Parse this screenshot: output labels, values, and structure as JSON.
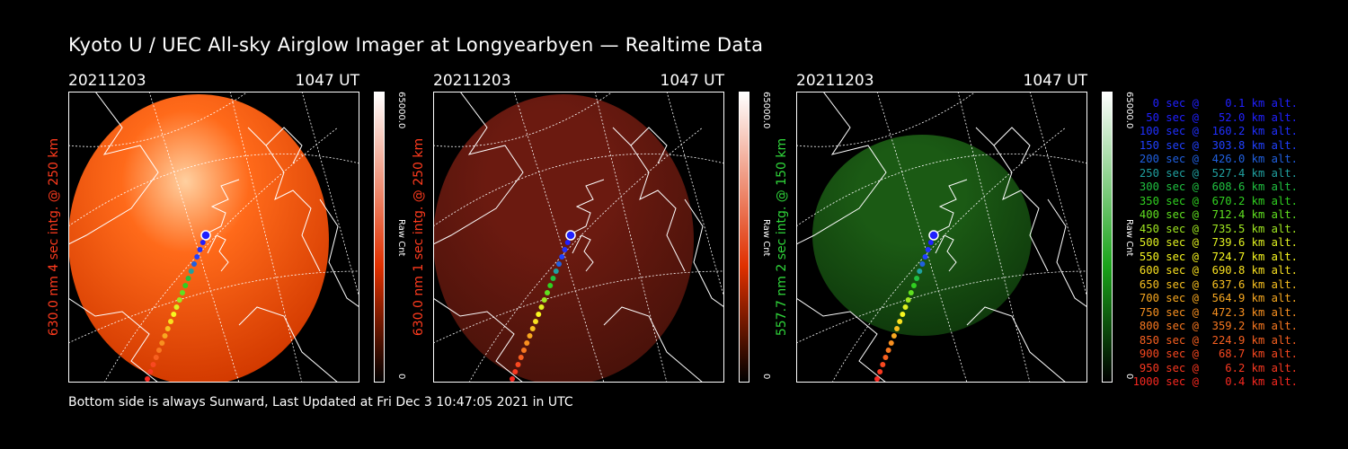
{
  "title": "Kyoto U / UEC All-sky Airglow Imager at Longyearbyen — Realtime Data",
  "footer": "Bottom side is always Sunward, Last Updated at Fri Dec  3 10:47:05 2021 in UTC",
  "panels": [
    {
      "date": "20211203",
      "time": "1047 UT",
      "label": "630.0 nm 4 sec intg. @ 250 km",
      "label_color": "#ff3b1e",
      "cbar_max": "65000.0",
      "cbar_unit": "Raw Cnt",
      "cbar_min": "0",
      "color_top": "#ffffff",
      "color_bottom": "#e03000",
      "glow_inner": "#ff6a1a",
      "glow_outer": "#d33a00",
      "brightness": "bright"
    },
    {
      "date": "20211203",
      "time": "1047 UT",
      "label": "630.0 nm 1 sec intg. @ 250 km",
      "label_color": "#ff3b1e",
      "cbar_max": "65000.0",
      "cbar_unit": "Raw Cnt",
      "cbar_min": "0",
      "color_top": "#ffffff",
      "color_bottom": "#e03000",
      "glow_inner": "#6b1a10",
      "glow_outer": "#4a120a",
      "brightness": "dim"
    },
    {
      "date": "20211203",
      "time": "1047 UT",
      "label": "557.7 nm 2 sec intg. @ 150 km",
      "label_color": "#2fd63a",
      "cbar_max": "65000.0",
      "cbar_unit": "Raw Cnt",
      "cbar_min": "0",
      "color_top": "#ffffff",
      "color_bottom": "#1aa31a",
      "glow_inner": "#1b5a14",
      "glow_outer": "#0f3a0c",
      "brightness": "dim"
    }
  ],
  "legend": [
    {
      "text": "   0 sec @    0.1 km alt.",
      "color": "#2020ff"
    },
    {
      "text": "  50 sec @   52.0 km alt.",
      "color": "#2020ff"
    },
    {
      "text": " 100 sec @  160.2 km alt.",
      "color": "#2030ff"
    },
    {
      "text": " 150 sec @  303.8 km alt.",
      "color": "#2040ff"
    },
    {
      "text": " 200 sec @  426.0 km alt.",
      "color": "#2060e0"
    },
    {
      "text": " 250 sec @  527.4 km alt.",
      "color": "#20a0a0"
    },
    {
      "text": " 300 sec @  608.6 km alt.",
      "color": "#20c040"
    },
    {
      "text": " 350 sec @  670.2 km alt.",
      "color": "#30d020"
    },
    {
      "text": " 400 sec @  712.4 km alt.",
      "color": "#60e020"
    },
    {
      "text": " 450 sec @  735.5 km alt.",
      "color": "#a0e820"
    },
    {
      "text": " 500 sec @  739.6 km alt.",
      "color": "#e0f020"
    },
    {
      "text": " 550 sec @  724.7 km alt.",
      "color": "#f8f820"
    },
    {
      "text": " 600 sec @  690.8 km alt.",
      "color": "#f8e020"
    },
    {
      "text": " 650 sec @  637.6 km alt.",
      "color": "#f8c020"
    },
    {
      "text": " 700 sec @  564.9 km alt.",
      "color": "#f8a820"
    },
    {
      "text": " 750 sec @  472.3 km alt.",
      "color": "#f89020"
    },
    {
      "text": " 800 sec @  359.2 km alt.",
      "color": "#f87820"
    },
    {
      "text": " 850 sec @  224.9 km alt.",
      "color": "#f86020"
    },
    {
      "text": " 900 sec @   68.7 km alt.",
      "color": "#f84820"
    },
    {
      "text": " 950 sec @    6.2 km alt.",
      "color": "#f83820"
    },
    {
      "text": "1000 sec @    0.4 km alt.",
      "color": "#f82820"
    }
  ]
}
